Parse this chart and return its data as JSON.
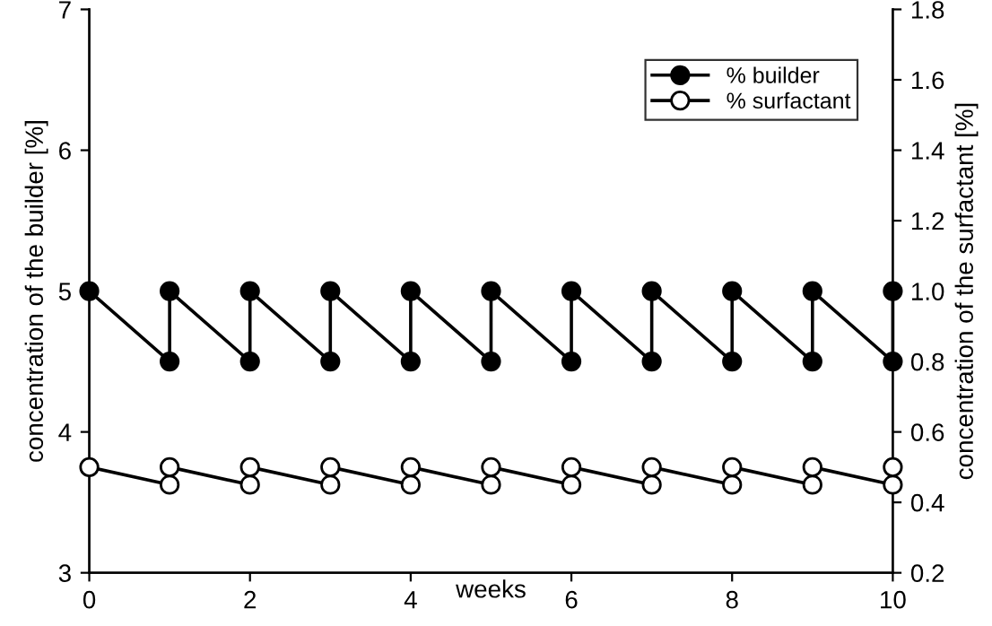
{
  "chart_data": {
    "type": "line",
    "xlabel": "weeks",
    "ylabel": "concentration of the builder [%]",
    "y2label": "concentration of the surfactant [%]",
    "xlim": [
      0,
      10
    ],
    "xticks": [
      0,
      2,
      4,
      6,
      8,
      10
    ],
    "ylim": [
      3,
      7
    ],
    "yticks": [
      3,
      4,
      5,
      6,
      7
    ],
    "y2lim": [
      0.2,
      1.8
    ],
    "y2ticks": [
      0.2,
      0.4,
      0.6,
      0.8,
      {
        "value": 1,
        "label": "1.0"
      },
      1.2,
      1.4,
      1.6,
      1.8
    ],
    "marker": "circle",
    "line_style": "solid",
    "legend": "top right",
    "grid": false,
    "series": [
      {
        "name": "% builder",
        "color": "#000000",
        "x": [
          0,
          1,
          1,
          2,
          2,
          3,
          3,
          4,
          4,
          5,
          5,
          6,
          6,
          7,
          7,
          8,
          8,
          9,
          9,
          10,
          10
        ],
        "values": [
          5,
          4.5,
          5,
          4.5,
          5,
          4.5,
          5,
          4.5,
          5,
          4.5,
          5,
          4.5,
          5,
          4.5,
          5,
          4.5,
          5,
          4.5,
          5,
          4.5,
          5
        ]
      },
      {
        "name": "% surfactant",
        "color": "#000000",
        "axis": "y2",
        "x": [
          0,
          1,
          1,
          2,
          2,
          3,
          3,
          4,
          4,
          5,
          5,
          6,
          6,
          7,
          7,
          8,
          8,
          9,
          9,
          10,
          10
        ],
        "values": [
          0.5,
          0.45,
          0.5,
          0.45,
          0.5,
          0.45,
          0.5,
          0.45,
          0.5,
          0.45,
          0.5,
          0.45,
          0.5,
          0.45,
          0.5,
          0.45,
          0.5,
          0.45,
          0.5,
          0.45,
          0.5
        ]
      }
    ]
  }
}
